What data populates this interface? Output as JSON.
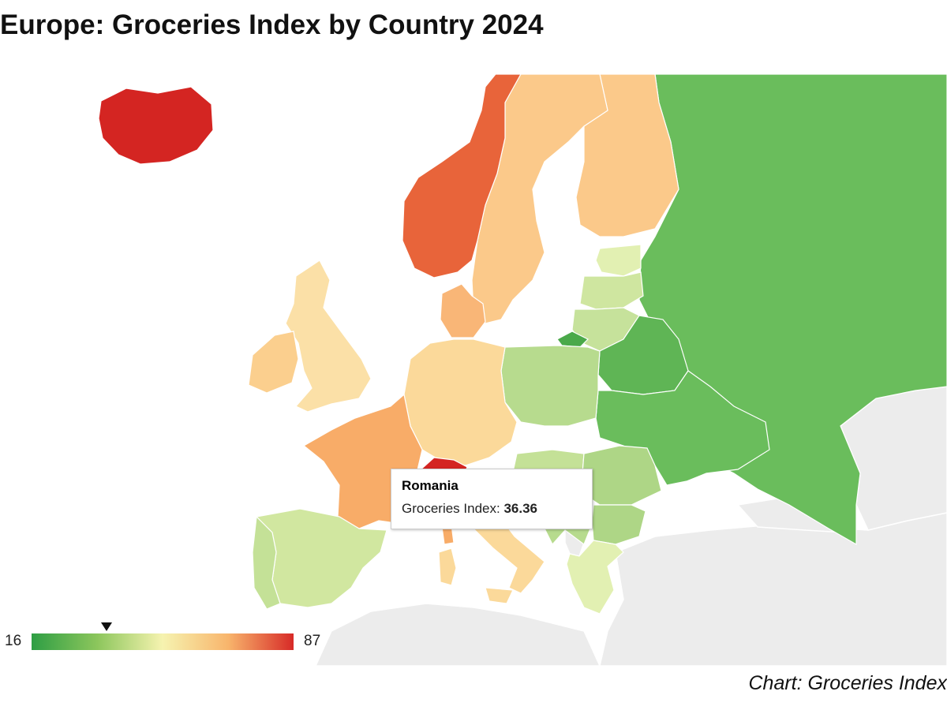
{
  "title": "Europe: Groceries Index by Country 2024",
  "source": "Chart: Groceries Index",
  "legend": {
    "min": "16",
    "max": "87",
    "min_value": 16,
    "max_value": 87,
    "marker_value": 36.36,
    "colors": [
      "#2e9e44",
      "#8cc65c",
      "#f6f3b0",
      "#f8b56c",
      "#d72a27"
    ]
  },
  "tooltip": {
    "country": "Romania",
    "label": "Groceries Index:",
    "value": "36.36"
  },
  "map": {
    "context_color": "#ececec",
    "background": "#ffffff",
    "regions": [
      {
        "id": "iceland",
        "color": "#d42522"
      },
      {
        "id": "norway",
        "color": "#e8643a"
      },
      {
        "id": "sweden",
        "color": "#fbc98a"
      },
      {
        "id": "finland",
        "color": "#fbc98a"
      },
      {
        "id": "russia",
        "color": "#6abd5c"
      },
      {
        "id": "estonia",
        "color": "#e2f0b2"
      },
      {
        "id": "latvia",
        "color": "#cfe6a0"
      },
      {
        "id": "lithuania",
        "color": "#c6e29b"
      },
      {
        "id": "belarus",
        "color": "#5fb555"
      },
      {
        "id": "ukraine",
        "color": "#6abd5c"
      },
      {
        "id": "poland",
        "color": "#b7db8e"
      },
      {
        "id": "germany",
        "color": "#fbd99a"
      },
      {
        "id": "denmark",
        "color": "#f9b677"
      },
      {
        "id": "uk",
        "color": "#fbe0a7"
      },
      {
        "id": "ireland",
        "color": "#fbcf8e"
      },
      {
        "id": "france",
        "color": "#f8ac68"
      },
      {
        "id": "switzerland",
        "color": "#d42522"
      },
      {
        "id": "italy",
        "color": "#fbd99a"
      },
      {
        "id": "spain",
        "color": "#d1e7a0"
      },
      {
        "id": "portugal",
        "color": "#c4e197"
      },
      {
        "id": "romania",
        "color": "#aed686"
      },
      {
        "id": "bulgaria",
        "color": "#aed686"
      },
      {
        "id": "hungary",
        "color": "#c4e197"
      },
      {
        "id": "balkans",
        "color": "#b7db8e"
      },
      {
        "id": "greece",
        "color": "#e2f0b2"
      },
      {
        "id": "kaliningrad",
        "color": "#4aa94a"
      }
    ]
  }
}
